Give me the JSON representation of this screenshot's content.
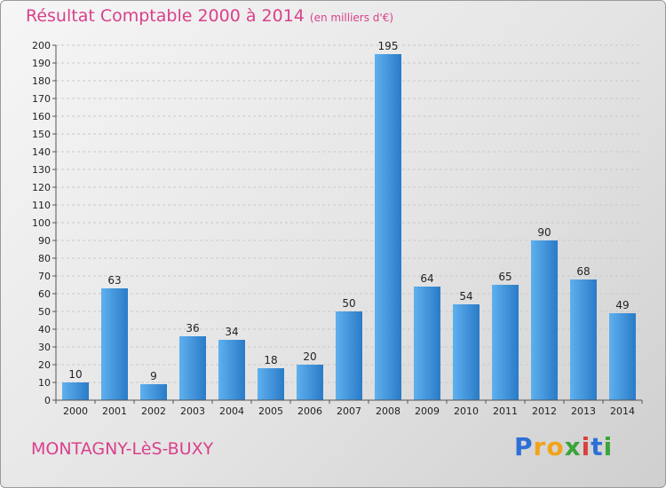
{
  "chart_data": {
    "type": "bar",
    "title": "Résultat Comptable 2000 à 2014",
    "subtitle": "(en milliers d'€)",
    "categories": [
      "2000",
      "2001",
      "2002",
      "2003",
      "2004",
      "2005",
      "2006",
      "2007",
      "2008",
      "2009",
      "2010",
      "2011",
      "2012",
      "2013",
      "2014"
    ],
    "values": [
      10,
      63,
      9,
      36,
      34,
      18,
      20,
      50,
      195,
      64,
      54,
      65,
      90,
      68,
      49
    ],
    "ylim": [
      0,
      200
    ],
    "yticks": [
      0,
      10,
      20,
      30,
      40,
      50,
      60,
      70,
      80,
      90,
      100,
      110,
      120,
      130,
      140,
      150,
      160,
      170,
      180,
      190,
      200
    ],
    "grid": true,
    "bar_color": "#3d8fd8"
  },
  "footer": {
    "town": "MONTAGNY-LèS-BUXY",
    "logo": "Proxiti",
    "logo_letters": [
      {
        "ch": "P",
        "color": "#2d6fd6"
      },
      {
        "ch": "r",
        "color": "#f2a31b"
      },
      {
        "ch": "o",
        "color": "#f2a31b"
      },
      {
        "ch": "x",
        "color": "#3aa53a"
      },
      {
        "ch": "i",
        "color": "#d94040"
      },
      {
        "ch": "t",
        "color": "#2d6fd6"
      },
      {
        "ch": "i",
        "color": "#3aa53a"
      }
    ]
  }
}
